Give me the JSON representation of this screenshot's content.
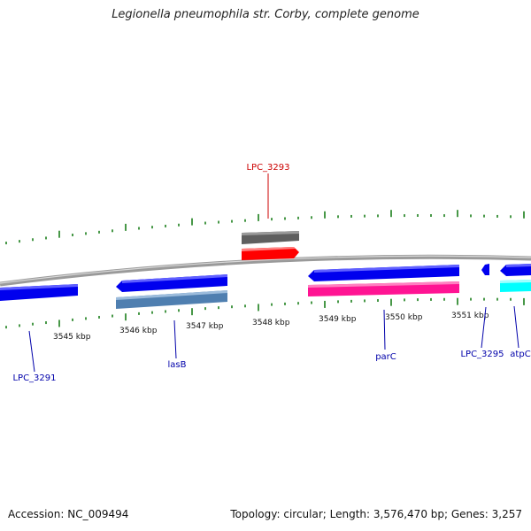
{
  "title": "Legionella pneumophila str. Corby, complete genome",
  "footer": {
    "accession": "Accession: NC_009494",
    "summary": "Topology: circular; Length: 3,576,470 bp; Genes: 3,257"
  },
  "scale_labels": [
    "3545 kbp",
    "3546 kbp",
    "3547 kbp",
    "3548 kbp",
    "3549 kbp",
    "3550 kbp",
    "3551 kbp"
  ],
  "gene_labels": {
    "lpc3293": "LPC_3293",
    "lpc3291": "LPC_3291",
    "lasb": "lasB",
    "parc": "parC",
    "lpc3295": "LPC_3295",
    "atpc": "atpC"
  },
  "colors": {
    "backbone": "#8c8c8c",
    "forward_gene": "#0000ee",
    "reverse_gene": "#0000ee",
    "red_gene": "#ff0000",
    "grey_gene": "#5f5f5f",
    "steel_gene": "#4f7fb0",
    "pink_gene": "#ff1493",
    "cyan_gene": "#00ffff",
    "tick": "#1a7f1a",
    "label_blue": "#0000aa",
    "label_red": "#cc0000"
  }
}
